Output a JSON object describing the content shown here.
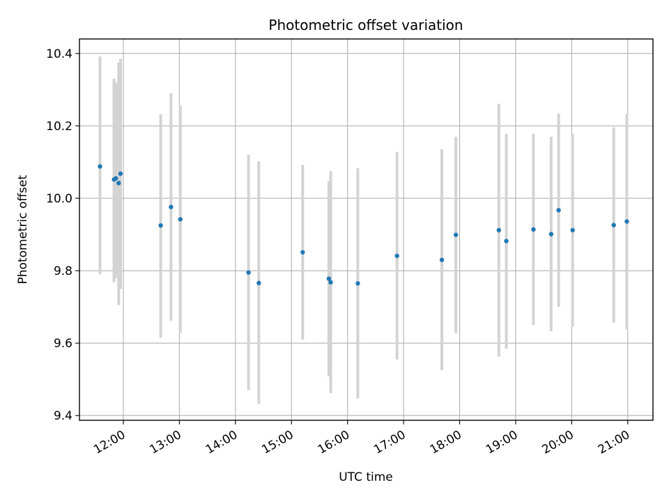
{
  "chart_data": {
    "type": "scatter",
    "title": "Photometric offset variation",
    "xlabel": "UTC time",
    "ylabel": "Photometric offset",
    "x_ticks": [
      "12:00",
      "13:00",
      "14:00",
      "15:00",
      "16:00",
      "17:00",
      "18:00",
      "19:00",
      "20:00",
      "21:00"
    ],
    "y_ticks": [
      "9.4",
      "9.6",
      "9.8",
      "10.0",
      "10.2",
      "10.4"
    ],
    "xlim": [
      "11:13",
      "21:27"
    ],
    "ylim": [
      9.387,
      10.44
    ],
    "grid": true,
    "point_color": "#1f77b4",
    "errorbar_color": "#d3d3d3",
    "points": [
      {
        "t": "11:35",
        "y": 10.088,
        "lo": 9.79,
        "hi": 10.392
      },
      {
        "t": "11:50",
        "y": 10.052,
        "lo": 9.768,
        "hi": 10.33
      },
      {
        "t": "11:52",
        "y": 10.055,
        "lo": 9.78,
        "hi": 10.32
      },
      {
        "t": "11:55",
        "y": 10.042,
        "lo": 9.705,
        "hi": 10.375
      },
      {
        "t": "11:57",
        "y": 10.068,
        "lo": 9.75,
        "hi": 10.385
      },
      {
        "t": "12:40",
        "y": 9.925,
        "lo": 9.615,
        "hi": 10.232
      },
      {
        "t": "12:51",
        "y": 9.976,
        "lo": 9.662,
        "hi": 10.29
      },
      {
        "t": "13:01",
        "y": 9.942,
        "lo": 9.628,
        "hi": 10.256
      },
      {
        "t": "14:14",
        "y": 9.795,
        "lo": 9.47,
        "hi": 10.12
      },
      {
        "t": "14:25",
        "y": 9.766,
        "lo": 9.432,
        "hi": 10.102
      },
      {
        "t": "15:12",
        "y": 9.851,
        "lo": 9.61,
        "hi": 10.092
      },
      {
        "t": "15:40",
        "y": 9.778,
        "lo": 9.508,
        "hi": 10.048
      },
      {
        "t": "15:42",
        "y": 9.768,
        "lo": 9.462,
        "hi": 10.075
      },
      {
        "t": "16:11",
        "y": 9.765,
        "lo": 9.447,
        "hi": 10.083
      },
      {
        "t": "16:53",
        "y": 9.841,
        "lo": 9.555,
        "hi": 10.128
      },
      {
        "t": "17:41",
        "y": 9.83,
        "lo": 9.525,
        "hi": 10.135
      },
      {
        "t": "17:56",
        "y": 9.899,
        "lo": 9.628,
        "hi": 10.17
      },
      {
        "t": "18:42",
        "y": 9.912,
        "lo": 9.563,
        "hi": 10.261
      },
      {
        "t": "18:50",
        "y": 9.882,
        "lo": 9.585,
        "hi": 10.178
      },
      {
        "t": "19:19",
        "y": 9.914,
        "lo": 9.65,
        "hi": 10.178
      },
      {
        "t": "19:38",
        "y": 9.901,
        "lo": 9.633,
        "hi": 10.17
      },
      {
        "t": "19:46",
        "y": 9.967,
        "lo": 9.7,
        "hi": 10.234
      },
      {
        "t": "20:01",
        "y": 9.912,
        "lo": 9.645,
        "hi": 10.178
      },
      {
        "t": "20:45",
        "y": 9.926,
        "lo": 9.657,
        "hi": 10.196
      },
      {
        "t": "20:59",
        "y": 9.936,
        "lo": 9.638,
        "hi": 10.233
      }
    ]
  }
}
